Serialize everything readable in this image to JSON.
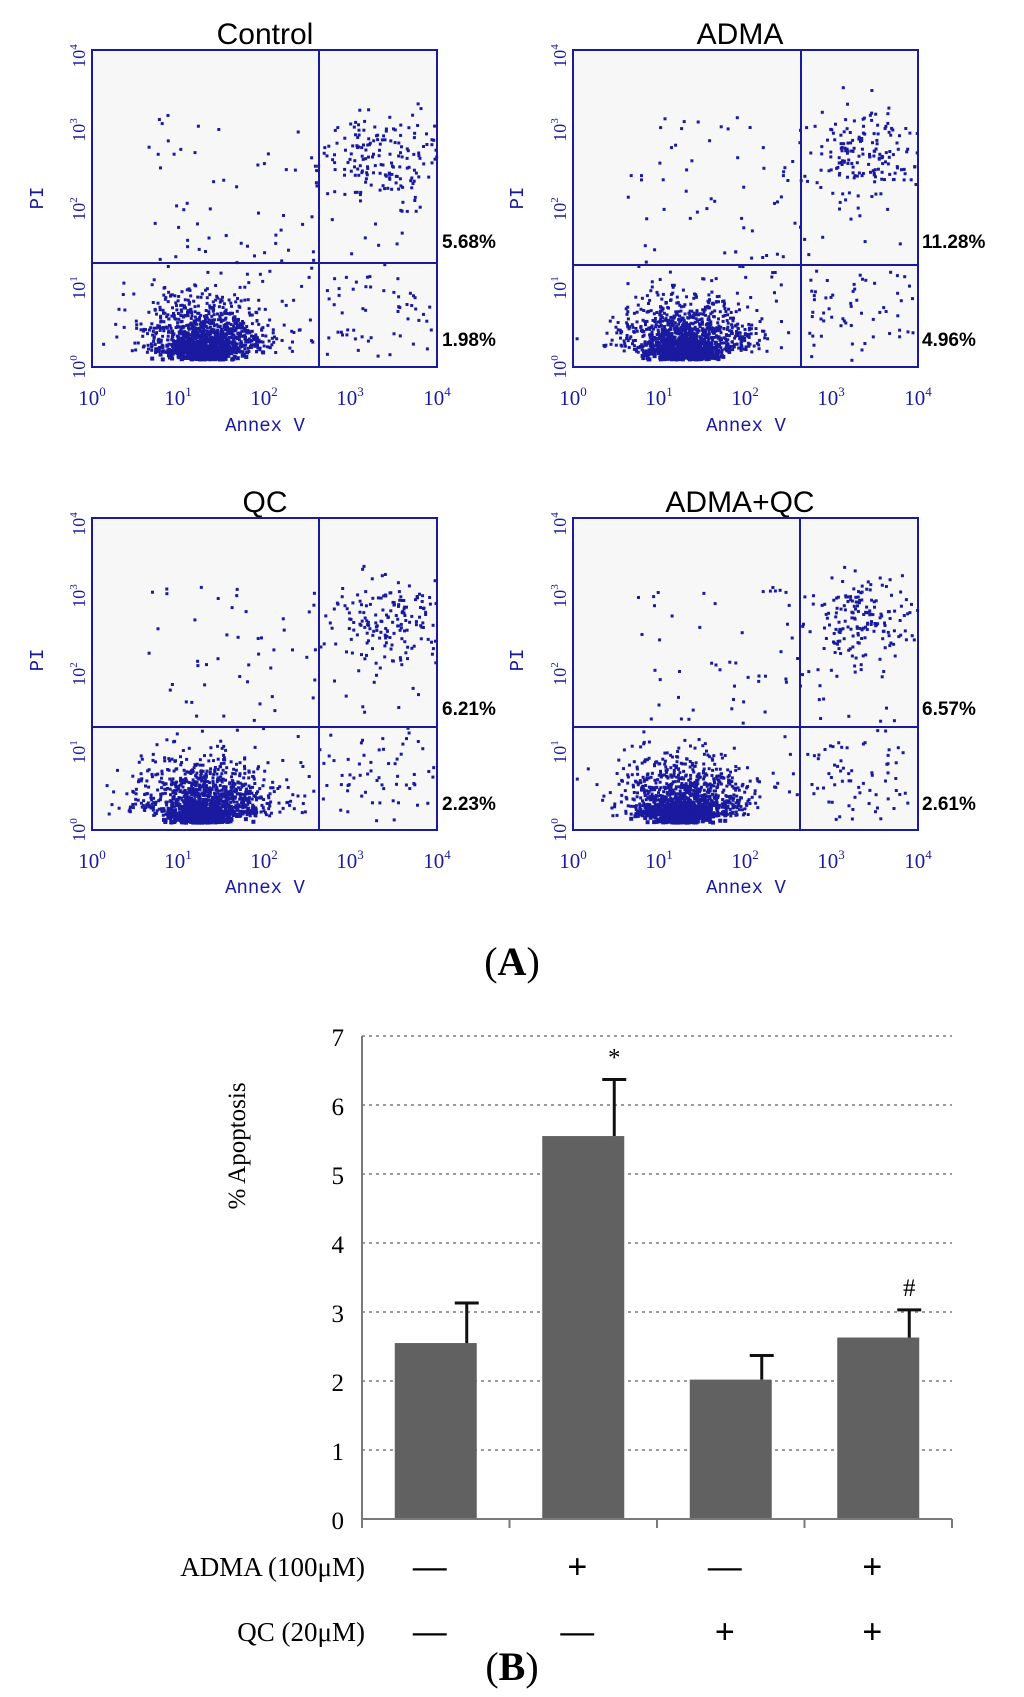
{
  "panel_a_label_open": "(",
  "panel_a_label_letter": "A",
  "panel_a_label_close": ")",
  "panel_b_label_open": "(",
  "panel_b_label_letter": "B",
  "panel_b_label_close": ")",
  "flow_axes": {
    "x_label": "Annex V",
    "y_label": "PI",
    "tick_base": "10",
    "tick_exponents": [
      "0",
      "1",
      "2",
      "3",
      "4"
    ],
    "log_range": [
      0,
      4
    ],
    "gate_x_log": 2.65,
    "gate_y_log": 1.3
  },
  "chart_data": [
    {
      "type": "scatter",
      "title": "Control",
      "xlabel": "Annex V",
      "ylabel": "PI",
      "x_scale": "log",
      "y_scale": "log",
      "xlim": [
        1,
        10000
      ],
      "ylim": [
        1,
        10000
      ],
      "upper_right_percent": "5.68%",
      "lower_right_percent": "1.98%",
      "seed": 11
    },
    {
      "type": "scatter",
      "title": "ADMA",
      "xlabel": "Annex V",
      "ylabel": "PI",
      "x_scale": "log",
      "y_scale": "log",
      "xlim": [
        1,
        10000
      ],
      "ylim": [
        1,
        10000
      ],
      "upper_right_percent": "11.28%",
      "lower_right_percent": "4.96%",
      "seed": 23
    },
    {
      "type": "scatter",
      "title": "QC",
      "xlabel": "Annex V",
      "ylabel": "PI",
      "x_scale": "log",
      "y_scale": "log",
      "xlim": [
        1,
        10000
      ],
      "ylim": [
        1,
        10000
      ],
      "upper_right_percent": "6.21%",
      "lower_right_percent": "2.23%",
      "seed": 37
    },
    {
      "type": "scatter",
      "title": "ADMA+QC",
      "xlabel": "Annex V",
      "ylabel": "PI",
      "x_scale": "log",
      "y_scale": "log",
      "xlim": [
        1,
        10000
      ],
      "ylim": [
        1,
        10000
      ],
      "upper_right_percent": "6.57%",
      "lower_right_percent": "2.61%",
      "seed": 53
    },
    {
      "type": "bar",
      "title": "",
      "xlabel": "",
      "ylabel": "% Apoptosis",
      "ylim": [
        0,
        7
      ],
      "yticks": [
        0,
        1,
        2,
        3,
        4,
        5,
        6,
        7
      ],
      "grid": "dotted horizontal",
      "values": [
        2.55,
        5.55,
        2.02,
        2.63
      ],
      "errors": [
        0.58,
        0.82,
        0.35,
        0.4
      ],
      "annotations": [
        "",
        "*",
        "",
        "#"
      ],
      "bar_color": "#616161",
      "conditions": [
        {
          "label": "ADMA (100μM)",
          "signs": [
            "—",
            "+",
            "—",
            "+"
          ]
        },
        {
          "label": "QC (20μM)",
          "signs": [
            "—",
            "—",
            "+",
            "+"
          ]
        }
      ]
    }
  ],
  "colors": {
    "flow_blue": "#1a1aa0",
    "bar": "#616161",
    "gate_line": "#1a1a9a"
  }
}
